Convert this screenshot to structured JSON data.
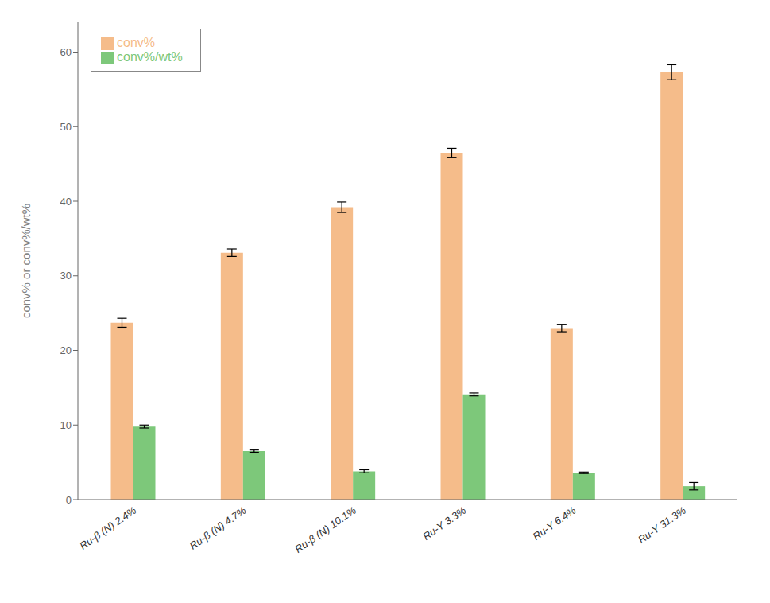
{
  "chart_data": {
    "type": "bar",
    "categories": [
      "Ru-β (N) 2.4%",
      "Ru-β (N) 4.7%",
      "Ru-β (N) 10.1%",
      "Ru-Y 3.3%",
      "Ru-Y 6.4%",
      "Ru-Y 31.3%"
    ],
    "series": [
      {
        "name": "conv%",
        "color": "#F5BC8A",
        "values": [
          23.7,
          33.1,
          39.2,
          46.5,
          23.0,
          57.3
        ],
        "errors": [
          0.6,
          0.5,
          0.7,
          0.6,
          0.5,
          1.0
        ]
      },
      {
        "name": "conv%/wt%",
        "color": "#7DC87A",
        "values": [
          9.8,
          6.5,
          3.8,
          14.1,
          3.6,
          1.8
        ],
        "errors": [
          0.2,
          0.15,
          0.2,
          0.2,
          0.1,
          0.5
        ]
      }
    ],
    "ylabel": "conv% or conv%/wt%",
    "ylim": [
      0,
      64
    ],
    "yticks": [
      0,
      10,
      20,
      30,
      40,
      50,
      60
    ],
    "grid": false,
    "legend": "upper left"
  }
}
